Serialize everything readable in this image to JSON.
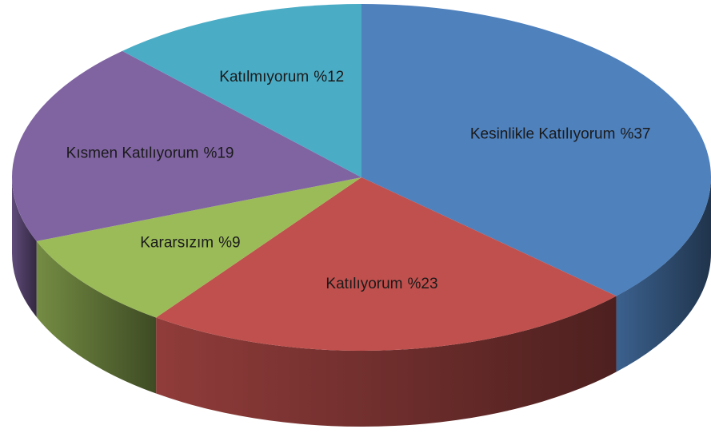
{
  "chart_data": {
    "type": "pie",
    "categories": [
      "Kesinlikle Katılıyorum",
      "Katılıyorum",
      "Kararsızım",
      "Kısmen Katılıyorum",
      "Katılmıyorum"
    ],
    "values": [
      37,
      23,
      9,
      19,
      12
    ],
    "value_labels": [
      "%37",
      "%23",
      "%9",
      "%19",
      "%12"
    ],
    "colors": [
      "#4f81bd",
      "#c0504d",
      "#9bbb59",
      "#8064a2",
      "#4bacc6"
    ]
  }
}
